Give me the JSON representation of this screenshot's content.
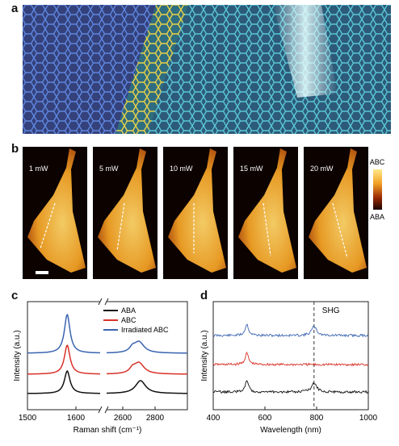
{
  "figure": {
    "panel_labels": [
      "a",
      "b",
      "c",
      "d"
    ]
  },
  "panel_b": {
    "powers": [
      "1 mW",
      "5 mW",
      "10 mW",
      "15 mW",
      "20 mW"
    ],
    "colorbar_top": "ABC",
    "colorbar_bottom": "ABA"
  },
  "chart_data": [
    {
      "type": "line",
      "panel": "c",
      "xlabel": "Raman shift (cm⁻¹)",
      "ylabel": "Intensity (a.u.)",
      "x_ticks": [
        "1500",
        "1600",
        "2600",
        "2800"
      ],
      "legend": [
        "ABA",
        "ABC",
        "Irradiated ABC"
      ],
      "legend_position": "top-right",
      "broken_axis": true,
      "series": [
        {
          "name": "ABA",
          "color": "#111111",
          "g_peak": 1582,
          "twod_peak": 2710
        },
        {
          "name": "ABC",
          "color": "#d8322a",
          "g_peak": 1582,
          "twod_peak": 2700
        },
        {
          "name": "Irradiated ABC",
          "color": "#3a64b0",
          "g_peak": 1582,
          "twod_peak": 2700
        }
      ],
      "xlim_left": [
        1500,
        1650
      ],
      "xlim_right": [
        2500,
        3000
      ]
    },
    {
      "type": "line",
      "panel": "d",
      "xlabel": "Wavelength (nm)",
      "ylabel": "Intensity (a.u.)",
      "x_ticks": [
        "400",
        "600",
        "800",
        "1000"
      ],
      "xlim": [
        400,
        1000
      ],
      "annotation": "SHG",
      "shg_line_x": 790,
      "series": [
        {
          "color": "#3a64b0",
          "peaks": [
            530,
            790
          ],
          "has_second_peak": true
        },
        {
          "color": "#d8322a",
          "peaks": [
            530
          ],
          "has_second_peak": false
        },
        {
          "color": "#111111",
          "peaks": [
            530,
            790
          ],
          "has_second_peak": true
        }
      ]
    }
  ],
  "colors": {
    "ab_stack": "#3e5fb0",
    "transition": "#e0c23a",
    "abc_stack": "#2fa6b8",
    "heat_dark": "#1a0400",
    "heat_bright": "#ffe98a"
  }
}
